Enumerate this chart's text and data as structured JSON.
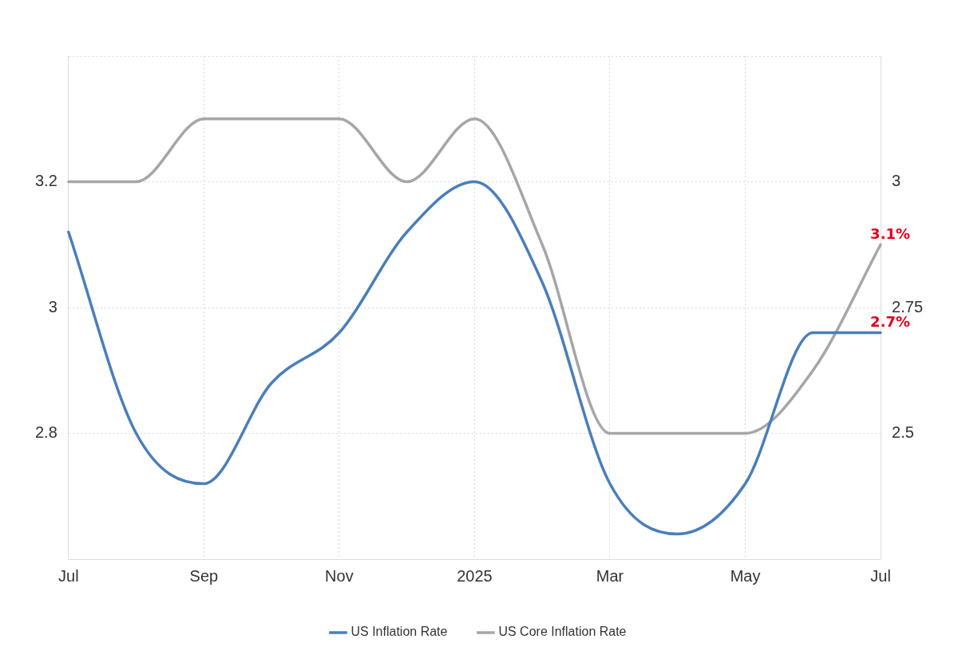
{
  "chart_data": {
    "type": "line",
    "categories": [
      "Jul",
      null,
      "Sep",
      null,
      "Nov",
      null,
      "2025",
      null,
      "Mar",
      null,
      "May",
      null,
      "Jul"
    ],
    "series": [
      {
        "name": "US Inflation Rate",
        "color": "#4a7ebb",
        "axis": "y2",
        "values": [
          2.9,
          2.5,
          2.4,
          2.6,
          2.7,
          2.9,
          3.0,
          2.8,
          2.4,
          2.3,
          2.4,
          2.7,
          2.7
        ],
        "value_labels": [
          null,
          null,
          null,
          null,
          null,
          null,
          null,
          null,
          null,
          null,
          null,
          null,
          "2.7%"
        ]
      },
      {
        "name": "US Core Inflation Rate",
        "color": "#a6a6a6",
        "values": [
          3.2,
          3.2,
          3.3,
          3.3,
          3.3,
          3.2,
          3.3,
          3.1,
          2.8,
          2.8,
          2.8,
          2.9,
          3.1
        ],
        "value_labels": [
          null,
          null,
          null,
          null,
          null,
          null,
          null,
          null,
          null,
          null,
          null,
          null,
          "3.1%"
        ]
      }
    ],
    "ylim": [
      2.6,
      3.4
    ],
    "yticks": [
      2.8,
      3,
      3.2,
      {
        "value": 3.4,
        "label": null
      }
    ],
    "y2lim": [
      2.25,
      3.25
    ],
    "y2ticks": [
      2.5,
      2.75,
      3
    ],
    "grid": true,
    "legend": "bottom",
    "marker": "none",
    "line_style": "solid"
  }
}
